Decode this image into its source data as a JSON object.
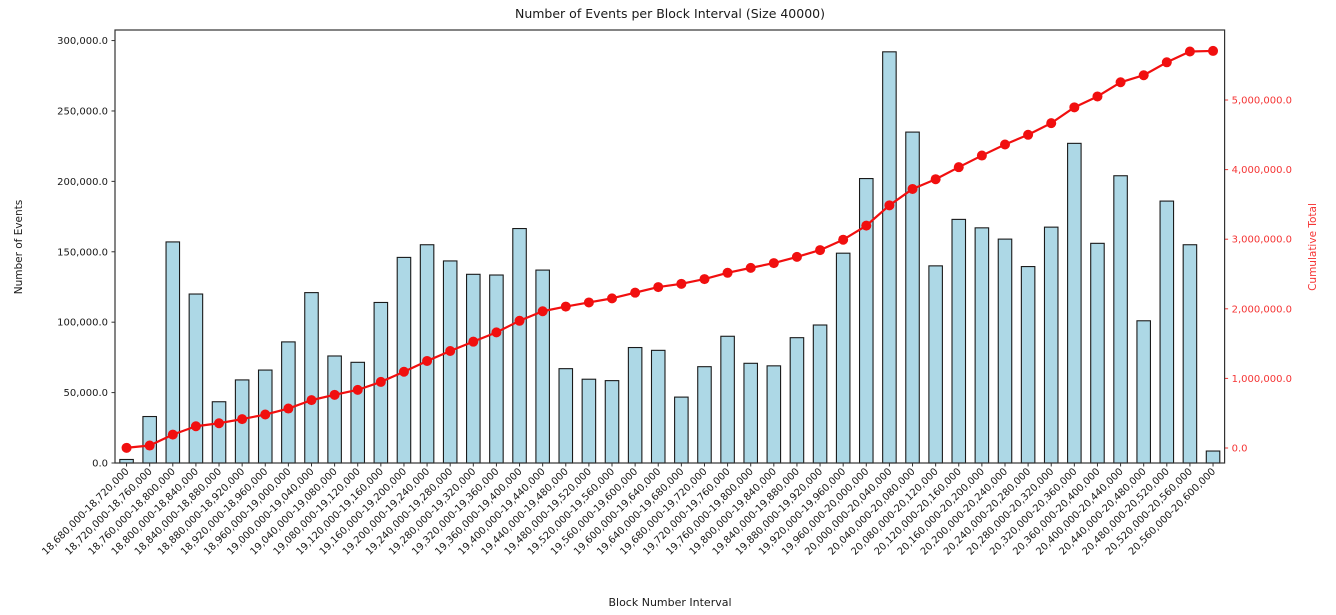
{
  "figure": {
    "title": "Number of Events per Block Interval (Size 40000)",
    "x_axis_title": "Block Number Interval",
    "y_axis_title_left": "Number of Events",
    "y_axis_title_right": "Cumulative Total"
  },
  "colors": {
    "background": "#ffffff",
    "bar_fill": "#add8e6",
    "bar_edge": "#1a1a1a",
    "line": "#f10f0f",
    "marker": "#f10f0f",
    "right_axis_text": "#f53535",
    "axis_text": "#1a1a1a",
    "spine": "#333333"
  },
  "chart_data": {
    "type": "bar",
    "title": "Number of Events per Block Interval (Size 40000)",
    "xlabel": "Block Number Interval",
    "ylabel": "Number of Events",
    "ylabel_right": "Cumulative Total",
    "grid": false,
    "legend": "none",
    "bar_series_name": "Number of Events",
    "overlay_series_name": "Cumulative Total",
    "overlay_type": "line",
    "ylim_left": [
      0,
      307500
    ],
    "ylim_right": [
      -215500,
      6006000
    ],
    "yticks_left": [
      0,
      50000,
      100000,
      150000,
      200000,
      250000,
      300000
    ],
    "yticks_right": [
      0,
      1000000,
      2000000,
      3000000,
      4000000,
      5000000
    ],
    "ytick_format": "comma_one_decimal",
    "xtick_rotation_deg": 45,
    "categories": [
      "18,680,000-18,720,000",
      "18,720,000-18,760,000",
      "18,760,000-18,800,000",
      "18,800,000-18,840,000",
      "18,840,000-18,880,000",
      "18,880,000-18,920,000",
      "18,920,000-18,960,000",
      "18,960,000-19,000,000",
      "19,000,000-19,040,000",
      "19,040,000-19,080,000",
      "19,080,000-19,120,000",
      "19,120,000-19,160,000",
      "19,160,000-19,200,000",
      "19,200,000-19,240,000",
      "19,240,000-19,280,000",
      "19,280,000-19,320,000",
      "19,320,000-19,360,000",
      "19,360,000-19,400,000",
      "19,400,000-19,440,000",
      "19,440,000-19,480,000",
      "19,480,000-19,520,000",
      "19,520,000-19,560,000",
      "19,560,000-19,600,000",
      "19,600,000-19,640,000",
      "19,640,000-19,680,000",
      "19,680,000-19,720,000",
      "19,720,000-19,760,000",
      "19,760,000-19,800,000",
      "19,800,000-19,840,000",
      "19,840,000-19,880,000",
      "19,880,000-19,920,000",
      "19,920,000-19,960,000",
      "19,960,000-20,000,000",
      "20,000,000-20,040,000",
      "20,040,000-20,080,000",
      "20,080,000-20,120,000",
      "20,120,000-20,160,000",
      "20,160,000-20,200,000",
      "20,200,000-20,240,000",
      "20,240,000-20,280,000",
      "20,280,000-20,320,000",
      "20,320,000-20,360,000",
      "20,360,000-20,400,000",
      "20,400,000-20,440,000",
      "20,440,000-20,480,000",
      "20,480,000-20,520,000",
      "20,520,000-20,560,000",
      "20,560,000-20,600,000"
    ],
    "values": [
      2500,
      33000,
      157000,
      120000,
      43500,
      59000,
      66000,
      86000,
      121000,
      76000,
      71500,
      114000,
      146000,
      155000,
      143500,
      134000,
      133500,
      166500,
      137000,
      67000,
      59500,
      58500,
      82000,
      80000,
      46800,
      68400,
      90000,
      70800,
      69000,
      89000,
      98000,
      149000,
      202000,
      292000,
      235000,
      140000,
      173000,
      167000,
      159000,
      139500,
      167500,
      227000,
      156000,
      204000,
      101000,
      186000,
      155000,
      8500
    ],
    "cumulative": [
      2500,
      35500,
      192500,
      312500,
      356000,
      415000,
      481000,
      567000,
      688000,
      764000,
      835500,
      949500,
      1095500,
      1250500,
      1394000,
      1528000,
      1661500,
      1828000,
      1965000,
      2032000,
      2091500,
      2150000,
      2232000,
      2312000,
      2358800,
      2427200,
      2517200,
      2588000,
      2657000,
      2746000,
      2844000,
      2993000,
      3195000,
      3487000,
      3722000,
      3862000,
      4035000,
      4202000,
      4361000,
      4500500,
      4668000,
      4895000,
      5051000,
      5255000,
      5356000,
      5542000,
      5697000,
      5705500
    ]
  }
}
